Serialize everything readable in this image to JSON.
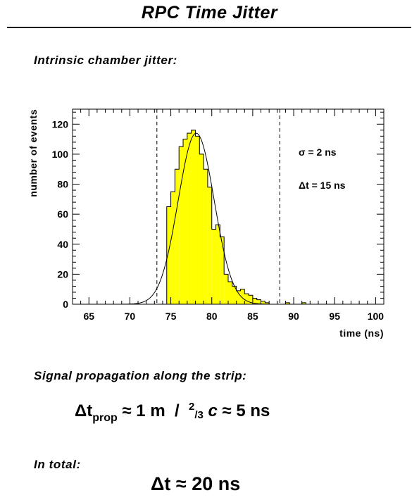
{
  "page": {
    "title": "RPC Time Jitter",
    "section1": "Intrinsic chamber jitter:",
    "section2": "Signal propagation along the strip:",
    "section3": "In total:",
    "formula1": {
      "delta": "Δt",
      "sub": "prop",
      "rest": " ≈ 1 m  /  ",
      "sup": "2",
      "frac": "/3",
      "c": " c",
      "tail": " ≈ 5 ns"
    },
    "formula2": "Δt ≈ 20 ns"
  },
  "chart_data": {
    "type": "bar",
    "xlabel": "time (ns)",
    "ylabel": "number of events",
    "xlim": [
      63,
      101
    ],
    "ylim": [
      0,
      130
    ],
    "xticks": [
      65,
      70,
      75,
      80,
      85,
      90,
      95,
      100
    ],
    "yticks": [
      0,
      20,
      40,
      60,
      80,
      100,
      120
    ],
    "bin_width": 0.5,
    "bins_start": [
      74.5,
      75,
      75.5,
      76,
      76.5,
      77,
      77.5,
      78,
      78.5,
      79,
      79.5,
      80,
      80.5,
      81,
      81.5,
      82,
      82.5,
      83,
      83.5,
      84,
      84.5,
      85,
      85.5,
      86,
      86.5,
      89,
      91
    ],
    "bins_values": [
      65,
      75,
      90,
      105,
      110,
      114,
      116,
      112,
      100,
      90,
      78,
      50,
      53,
      45,
      20,
      15,
      12,
      9,
      10,
      7,
      6,
      4,
      3,
      2,
      1,
      1,
      1
    ],
    "fit": {
      "mean": 78.1,
      "sigma": 2.2,
      "amplitude": 114
    },
    "cuts": [
      73.3,
      88.3
    ],
    "annotations": [
      "σ = 2 ns",
      "Δt = 15 ns"
    ],
    "colors": {
      "fill": "#ffff00",
      "line": "#000000"
    }
  }
}
